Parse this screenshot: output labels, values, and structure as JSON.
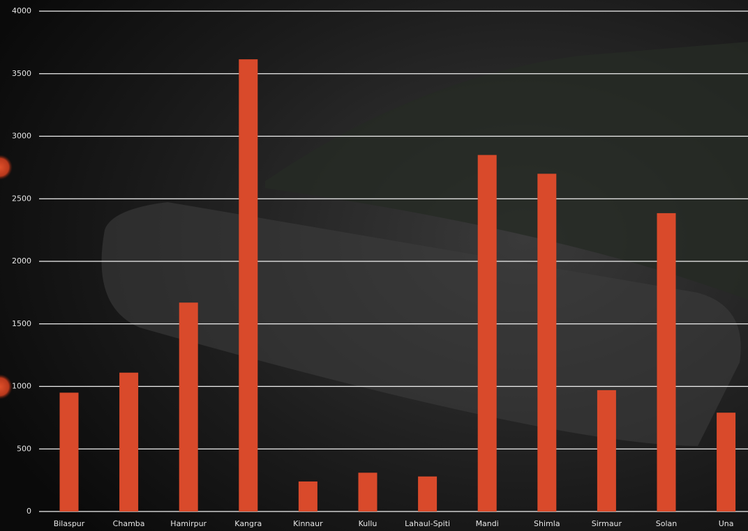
{
  "chart_data": {
    "type": "bar",
    "categories": [
      "Bilaspur",
      "Chamba",
      "Hamirpur",
      "Kangra",
      "Kinnaur",
      "Kullu",
      "Lahaul-Spiti",
      "Mandi",
      "Shimla",
      "Sirmaur",
      "Solan",
      "Una"
    ],
    "values": [
      950,
      1110,
      1670,
      3615,
      240,
      310,
      280,
      2850,
      2700,
      970,
      2385,
      790
    ],
    "color": "#d94a2b",
    "ylim": [
      0,
      4000
    ],
    "yticks": [
      0,
      500,
      1000,
      1500,
      2000,
      2500,
      3000,
      3500,
      4000
    ],
    "grid": true
  }
}
